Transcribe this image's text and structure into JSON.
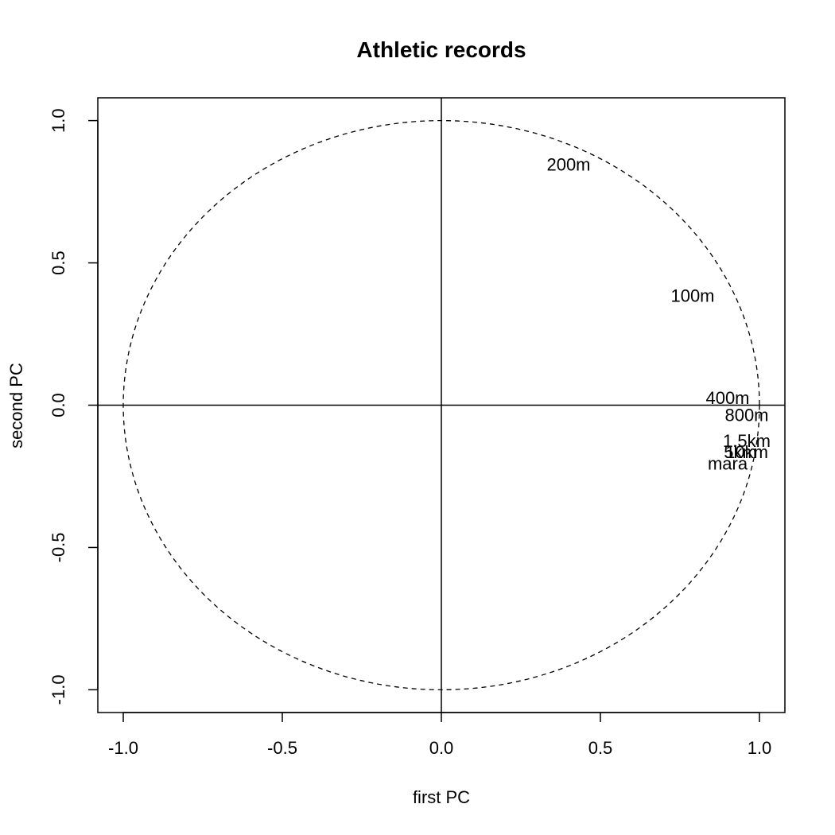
{
  "chart_data": {
    "type": "scatter",
    "title": "Athletic records",
    "xlabel": "first PC",
    "ylabel": "second PC",
    "xlim": [
      -1.08,
      1.08
    ],
    "ylim": [
      -1.08,
      1.08
    ],
    "x_ticks": [
      -1.0,
      -0.5,
      0.0,
      0.5,
      1.0
    ],
    "x_tick_labels": [
      "-1.0",
      "-0.5",
      "0.0",
      "0.5",
      "1.0"
    ],
    "y_ticks": [
      -1.0,
      -0.5,
      0.0,
      0.5,
      1.0
    ],
    "y_tick_labels": [
      "-1.0",
      "-0.5",
      "0.0",
      "0.5",
      "1.0"
    ],
    "reference_lines": {
      "h": 0,
      "v": 0
    },
    "unit_circle": {
      "radius": 1,
      "style": "dashed"
    },
    "points": [
      {
        "label": "100m",
        "x": 0.79,
        "y": 0.38
      },
      {
        "label": "200m",
        "x": 0.4,
        "y": 0.84
      },
      {
        "label": "400m",
        "x": 0.9,
        "y": 0.02
      },
      {
        "label": "800m",
        "x": 0.96,
        "y": -0.04
      },
      {
        "label": "1.5km",
        "x": 0.96,
        "y": -0.13
      },
      {
        "label": "5km",
        "x": 0.94,
        "y": -0.17
      },
      {
        "label": "10km",
        "x": 0.96,
        "y": -0.17
      },
      {
        "label": "mara",
        "x": 0.9,
        "y": -0.21
      }
    ]
  }
}
